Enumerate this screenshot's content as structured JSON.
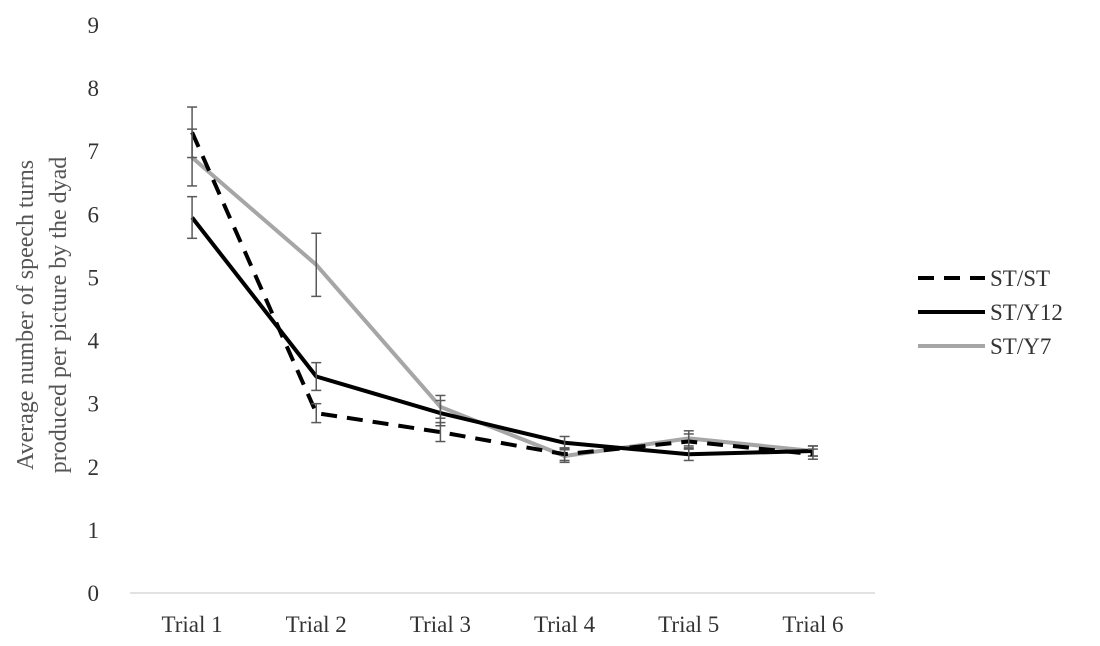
{
  "chart_data": {
    "type": "line",
    "categories": [
      "Trial 1",
      "Trial 2",
      "Trial 3",
      "Trial 4",
      "Trial 5",
      "Trial 6"
    ],
    "ylabel_lines": [
      "Average number of speech turns",
      "produced per picture by the dyad"
    ],
    "ylim": [
      0,
      9
    ],
    "yticks": [
      "0",
      "1",
      "2",
      "3",
      "4",
      "5",
      "6",
      "7",
      "8",
      "9"
    ],
    "grid": false,
    "legend_position": "right",
    "series": [
      {
        "name": "ST/ST",
        "values": [
          7.3,
          2.85,
          2.55,
          2.2,
          2.4,
          2.2
        ],
        "error": [
          0.4,
          0.15,
          0.15,
          0.1,
          0.12,
          0.08
        ],
        "color": "#000000",
        "dashed": true
      },
      {
        "name": "ST/Y12",
        "values": [
          5.95,
          3.43,
          2.85,
          2.38,
          2.2,
          2.25
        ],
        "error": [
          0.33,
          0.22,
          0.2,
          0.1,
          0.1,
          0.08
        ],
        "color": "#000000",
        "dashed": false
      },
      {
        "name": "ST/Y7",
        "values": [
          6.9,
          5.2,
          2.95,
          2.17,
          2.45,
          2.25
        ],
        "error": [
          0.45,
          0.5,
          0.18,
          0.1,
          0.12,
          0.08
        ],
        "color": "#a6a6a6",
        "dashed": false
      }
    ]
  }
}
